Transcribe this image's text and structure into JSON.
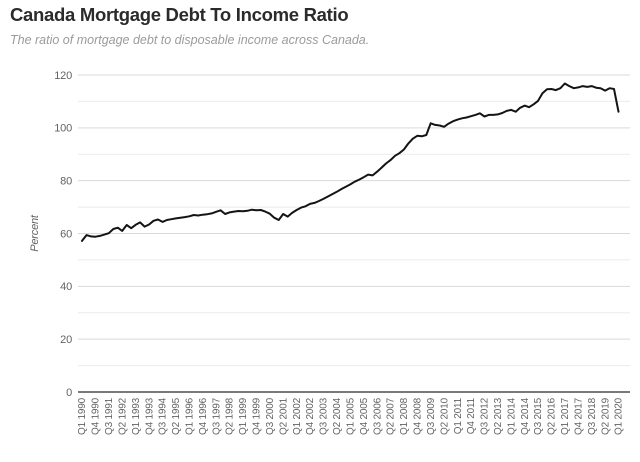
{
  "chart_data": {
    "type": "line",
    "title": "Canada Mortgage Debt To Income Ratio",
    "subtitle": "The ratio of mortgage debt to disposable income across Canada.",
    "ylabel": "Percent",
    "ylim": [
      0,
      120
    ],
    "y_major_ticks": [
      0,
      20,
      40,
      60,
      80,
      100,
      120
    ],
    "y_minor_step": 10,
    "grid": true,
    "legend": false,
    "x_start": "Q1 1990",
    "x_end": "Q1 2020",
    "frequency": "quarterly",
    "x_tick_every": 3,
    "x_tick_labels": [
      "Q1 1990",
      "Q4 1990",
      "Q3 1991",
      "Q2 1992",
      "Q1 1993",
      "Q4 1993",
      "Q3 1994",
      "Q2 1995",
      "Q1 1996",
      "Q4 1996",
      "Q3 1997",
      "Q2 1998",
      "Q1 1999",
      "Q4 1999",
      "Q3 2000",
      "Q2 2001",
      "Q1 2002",
      "Q4 2002",
      "Q3 2003",
      "Q2 2004",
      "Q1 2005",
      "Q4 2005",
      "Q3 2006",
      "Q2 2007",
      "Q1 2008",
      "Q4 2008",
      "Q3 2009",
      "Q2 2010",
      "Q1 2011",
      "Q4 2011",
      "Q3 2012",
      "Q2 2013",
      "Q1 2014",
      "Q4 2014",
      "Q3 2015",
      "Q2 2016",
      "Q1 2017",
      "Q4 2017",
      "Q3 2018",
      "Q2 2019",
      "Q1 2020"
    ],
    "values": [
      57.2,
      59.4,
      58.9,
      58.8,
      59.1,
      59.6,
      60.1,
      61.7,
      62.2,
      61.0,
      63.2,
      62.0,
      63.3,
      64.2,
      62.6,
      63.4,
      64.8,
      65.3,
      64.4,
      65.1,
      65.4,
      65.7,
      66.0,
      66.2,
      66.5,
      67.0,
      66.8,
      67.1,
      67.3,
      67.6,
      68.2,
      68.8,
      67.4,
      68.0,
      68.3,
      68.5,
      68.4,
      68.6,
      69.0,
      68.8,
      68.9,
      68.3,
      67.5,
      66.0,
      65.1,
      67.4,
      66.4,
      67.8,
      68.9,
      69.8,
      70.3,
      71.2,
      71.6,
      72.3,
      73.1,
      74.0,
      74.9,
      75.8,
      76.8,
      77.7,
      78.6,
      79.6,
      80.4,
      81.3,
      82.3,
      82.0,
      83.4,
      84.9,
      86.5,
      87.8,
      89.4,
      90.4,
      91.8,
      94.1,
      95.9,
      97.0,
      96.8,
      97.3,
      101.7,
      101.1,
      100.9,
      100.4,
      101.6,
      102.5,
      103.1,
      103.6,
      103.9,
      104.4,
      104.9,
      105.5,
      104.3,
      104.9,
      104.9,
      105.1,
      105.6,
      106.4,
      106.8,
      106.1,
      107.6,
      108.4,
      107.8,
      108.9,
      110.2,
      113.1,
      114.6,
      114.7,
      114.3,
      115.0,
      116.8,
      115.8,
      115.0,
      115.3,
      115.8,
      115.5,
      115.8,
      115.2,
      115.0,
      114.1,
      115.0,
      114.7,
      106.1
    ],
    "colors": {
      "line": "#141414",
      "grid_major": "#d9d9d9",
      "grid_minor": "#ebebeb",
      "axis": "#4d4d4d",
      "tick_label": "#636363",
      "title": "#2b2b2b",
      "subtitle": "#9b9b9b"
    }
  }
}
